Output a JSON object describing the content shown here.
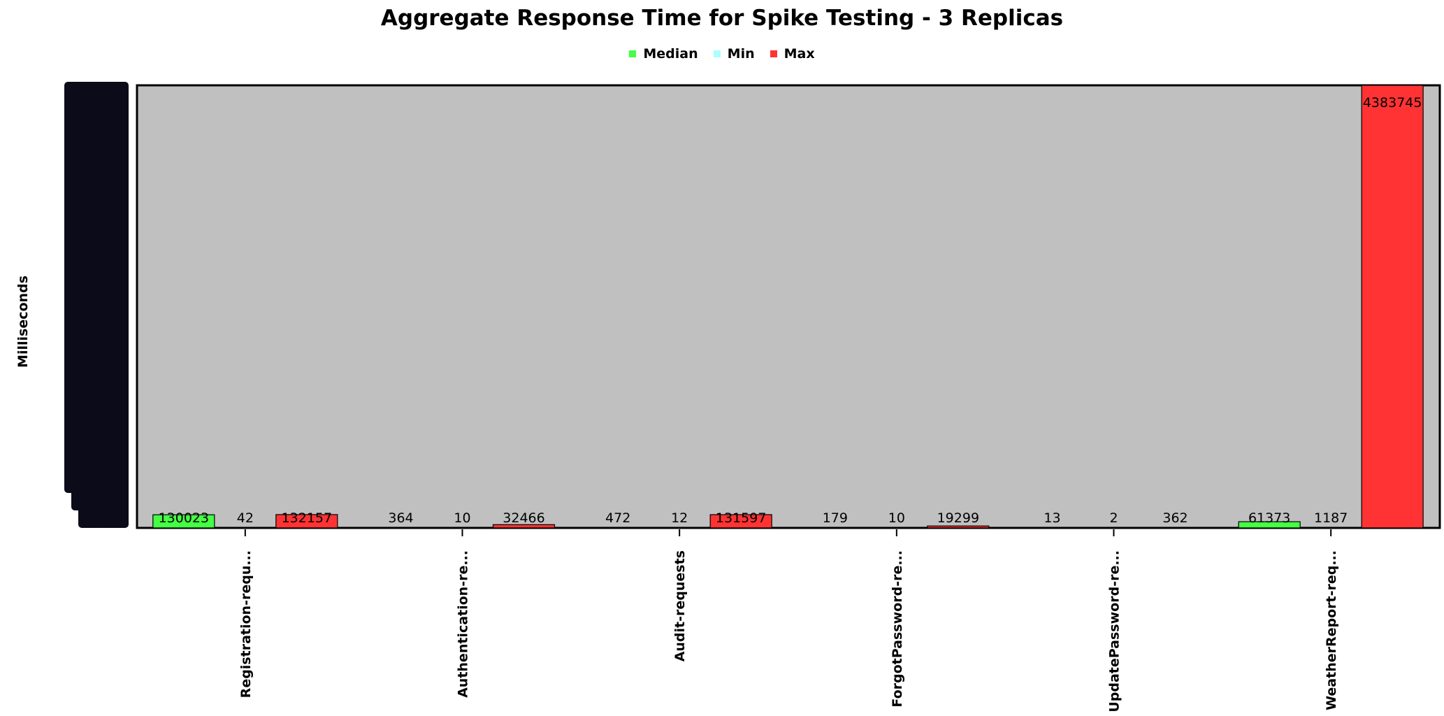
{
  "chart_data": {
    "type": "bar",
    "title": "Aggregate Response Time for Spike Testing - 3 Replicas",
    "xlabel": "",
    "ylabel": "Milliseconds",
    "legend_position": "top-center",
    "background_color": "#c0c0c0",
    "categories": [
      "Registration-requ...",
      "Authentication-re...",
      "Audit-requests",
      "ForgotPassword-re...",
      "UpdatePassword-re...",
      "WeatherReport-req..."
    ],
    "series": [
      {
        "name": "Median",
        "color": "#44ff44",
        "values": [
          130023,
          364,
          472,
          179,
          13,
          61373
        ]
      },
      {
        "name": "Min",
        "color": "#aaffff",
        "values": [
          42,
          10,
          12,
          10,
          2,
          1187
        ]
      },
      {
        "name": "Max",
        "color": "#ff3333",
        "values": [
          132157,
          32466,
          131597,
          19299,
          362,
          4383745
        ]
      }
    ],
    "ylim": [
      0,
      4383745
    ]
  }
}
